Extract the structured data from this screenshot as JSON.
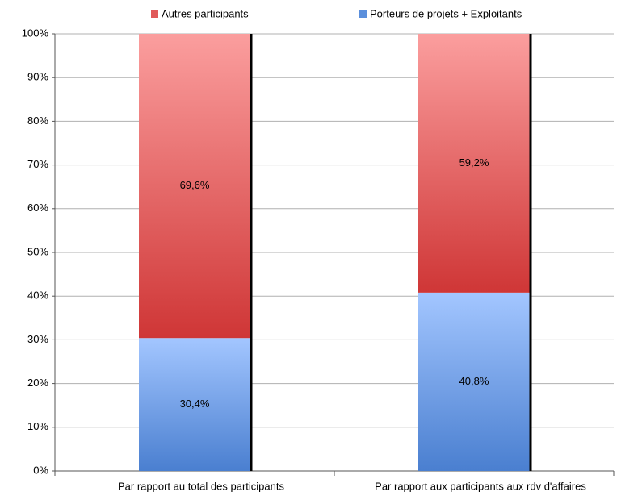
{
  "chart_data": {
    "type": "stacked-bar",
    "categories": [
      "Par rapport au total des participants",
      "Par rapport aux participants aux rdv d'affaires"
    ],
    "series": [
      {
        "name": "Porteurs de projets + Exploitants",
        "color": "#5b8fdc",
        "gradient": [
          "#a3c6ff",
          "#4a7fd0"
        ],
        "values": [
          30.4,
          40.8
        ],
        "value_labels": [
          "30,4%",
          "40,8%"
        ]
      },
      {
        "name": "Autres participants",
        "color": "#e05a5a",
        "gradient": [
          "#fb9e9e",
          "#cf3636"
        ],
        "values": [
          69.6,
          59.2
        ],
        "value_labels": [
          "69,6%",
          "59,2%"
        ]
      }
    ],
    "ylim": [
      0,
      100
    ],
    "yticks": [
      {
        "value": 0,
        "label": "0%"
      },
      {
        "value": 10,
        "label": "10%"
      },
      {
        "value": 20,
        "label": "20%"
      },
      {
        "value": 30,
        "label": "30%"
      },
      {
        "value": 40,
        "label": "40%"
      },
      {
        "value": 50,
        "label": "50%"
      },
      {
        "value": 60,
        "label": "60%"
      },
      {
        "value": 70,
        "label": "70%"
      },
      {
        "value": 80,
        "label": "80%"
      },
      {
        "value": 90,
        "label": "90%"
      },
      {
        "value": 100,
        "label": "100%"
      }
    ],
    "grid": true,
    "legend": "top"
  }
}
